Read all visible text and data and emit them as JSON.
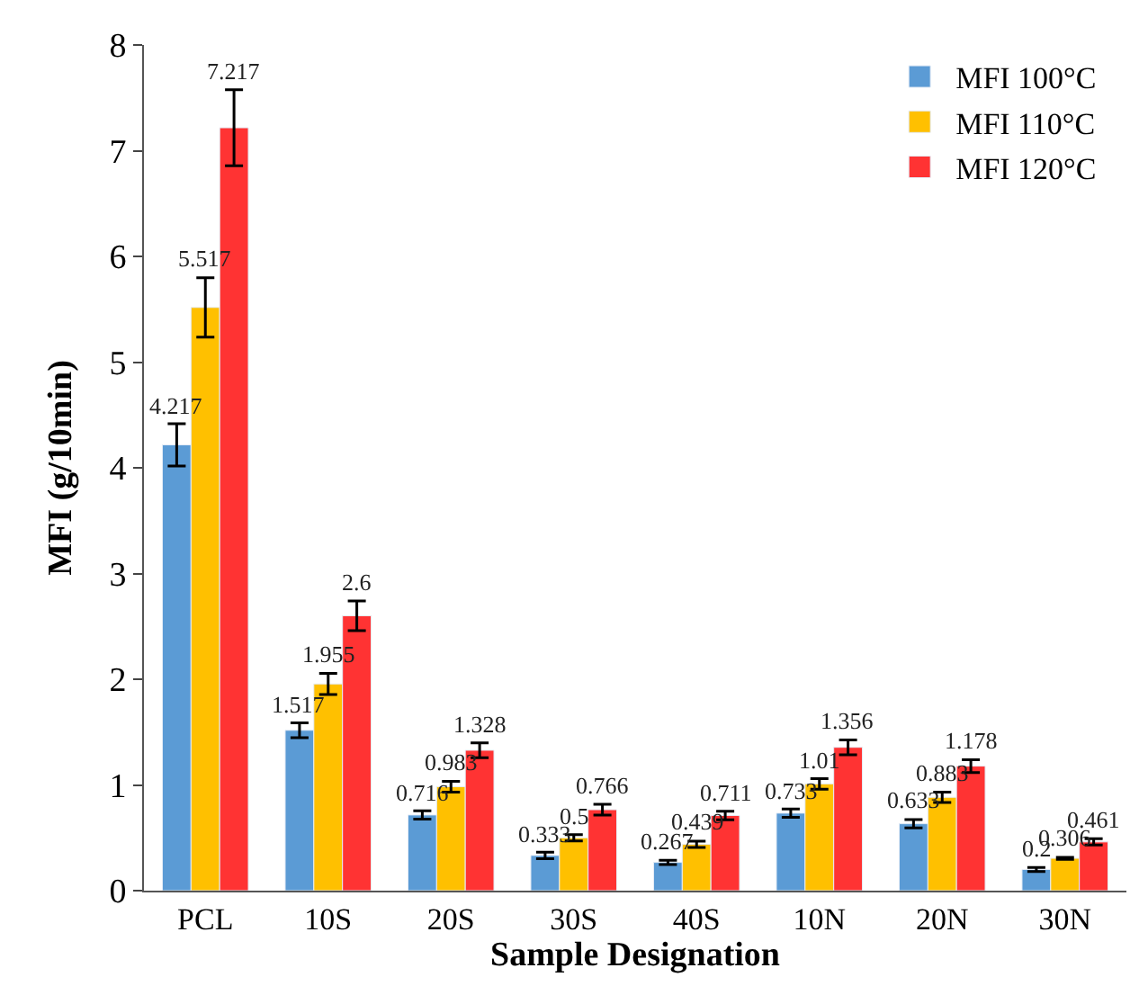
{
  "chart_data": {
    "type": "bar",
    "xlabel": "Sample Designation",
    "ylabel": "MFI (g/10min)",
    "categories": [
      "PCL",
      "10S",
      "20S",
      "30S",
      "40S",
      "10N",
      "20N",
      "30N"
    ],
    "series": [
      {
        "name": "MFI 100°C",
        "color": "#5b9bd5",
        "values": [
          4.217,
          1.517,
          0.716,
          0.333,
          0.267,
          0.733,
          0.633,
          0.2
        ],
        "errors": [
          0.2,
          0.07,
          0.04,
          0.03,
          0.02,
          0.04,
          0.04,
          0.02
        ]
      },
      {
        "name": "MFI 110°C",
        "color": "#ffc000",
        "values": [
          5.517,
          1.955,
          0.983,
          0.5,
          0.439,
          1.01,
          0.883,
          0.306
        ],
        "errors": [
          0.28,
          0.1,
          0.05,
          0.03,
          0.03,
          0.05,
          0.05,
          0.01
        ]
      },
      {
        "name": "MFI 120°C",
        "color": "#ff3333",
        "values": [
          7.217,
          2.6,
          1.328,
          0.766,
          0.711,
          1.356,
          1.178,
          0.461
        ],
        "errors": [
          0.36,
          0.14,
          0.07,
          0.05,
          0.04,
          0.07,
          0.06,
          0.03
        ]
      }
    ],
    "ylim": [
      0,
      8
    ],
    "yticks": [
      0,
      1,
      2,
      3,
      4,
      5,
      6,
      7,
      8
    ],
    "data_labels": true,
    "legend": "top right"
  }
}
